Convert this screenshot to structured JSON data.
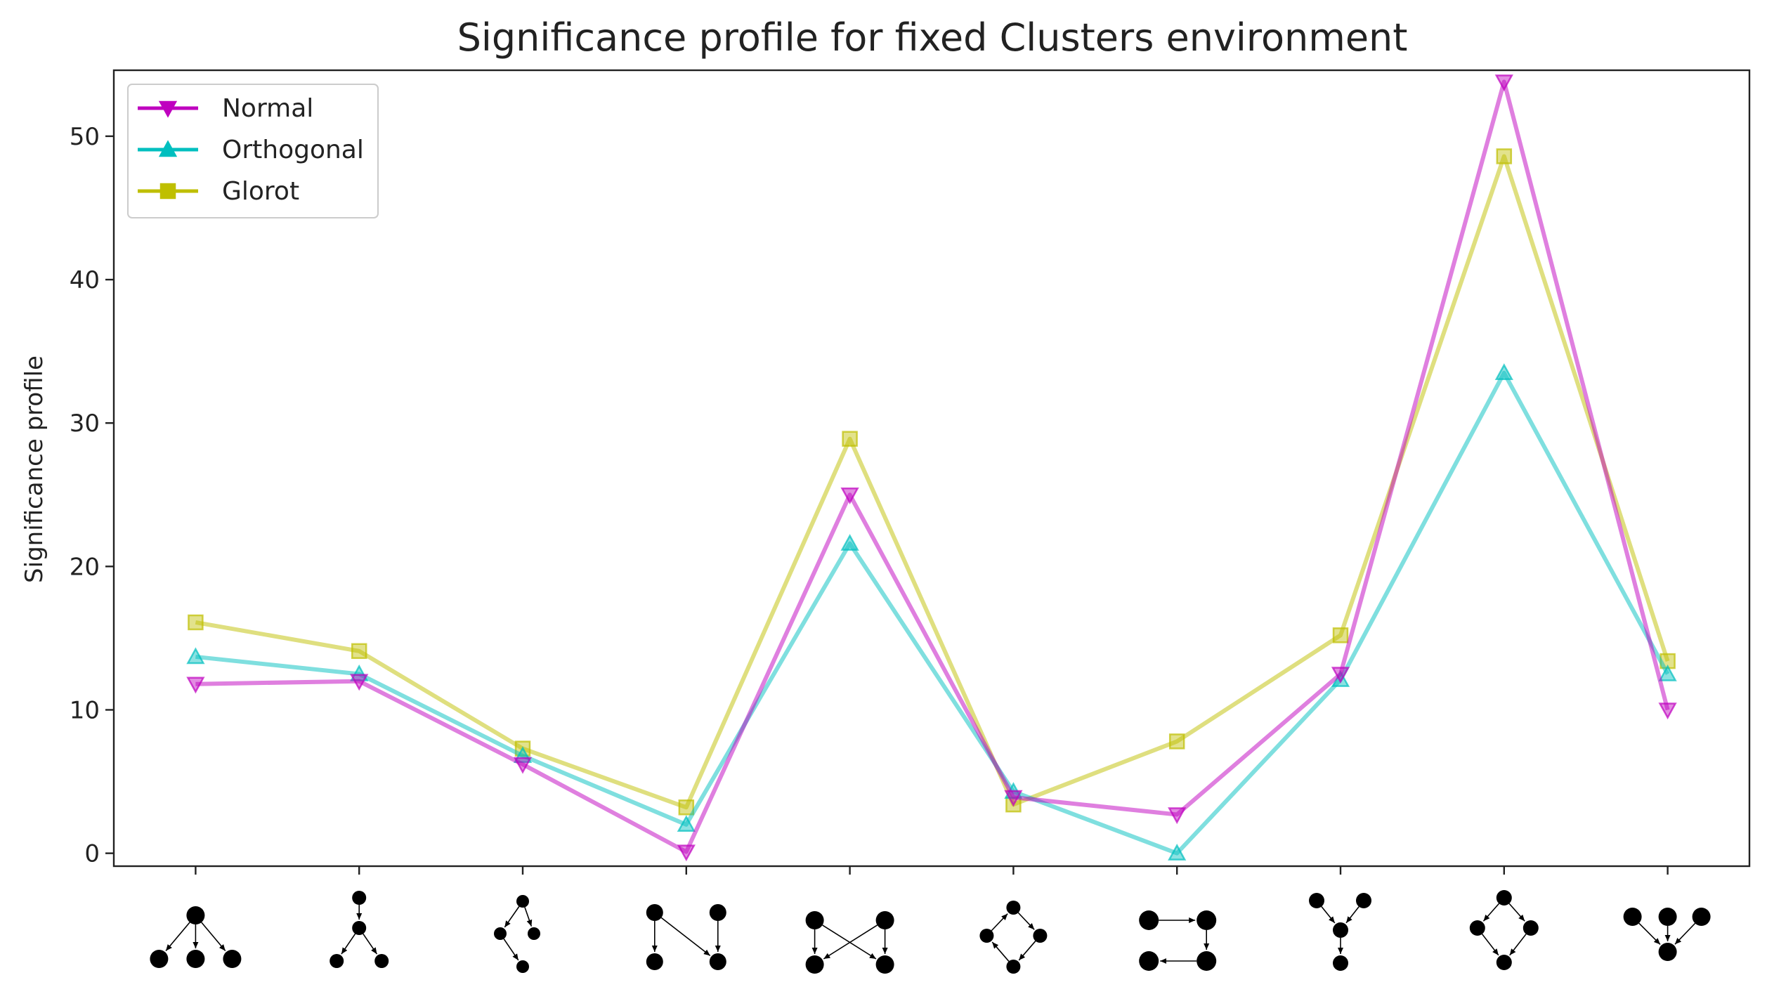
{
  "chart_data": {
    "type": "line",
    "title": "Significance profile for fixed Clusters environment",
    "xlabel": "",
    "ylabel": "Significance profile",
    "x": [
      0,
      1,
      2,
      3,
      4,
      5,
      6,
      7,
      8,
      9
    ],
    "xlim": [
      -0.5,
      9.5
    ],
    "ylim": [
      -0.9,
      54.6
    ],
    "yticks": [
      0,
      10,
      20,
      30,
      40,
      50
    ],
    "x_tick_labels": "motif diagrams (three-node subgraph icons), no text",
    "grid": false,
    "legend_position": "top-left",
    "series": [
      {
        "name": "Normal",
        "color": "#bf00bf",
        "marker": "triangle-down",
        "values": [
          11.8,
          12.0,
          6.2,
          0.1,
          25.0,
          3.9,
          2.7,
          12.5,
          53.8,
          10.0
        ]
      },
      {
        "name": "Orthogonal",
        "color": "#00bfbf",
        "marker": "triangle-up",
        "values": [
          13.7,
          12.5,
          6.8,
          2.0,
          21.6,
          4.3,
          0.0,
          12.1,
          33.5,
          12.5
        ]
      },
      {
        "name": "Glorot",
        "color": "#bfbf00",
        "marker": "square",
        "values": [
          16.1,
          14.1,
          7.3,
          3.2,
          28.9,
          3.4,
          7.8,
          15.2,
          48.6,
          13.4
        ]
      }
    ],
    "motif_icons": [
      "motif-1",
      "motif-2",
      "motif-3",
      "motif-4",
      "motif-5",
      "motif-6",
      "motif-7",
      "motif-8",
      "motif-9",
      "motif-10"
    ]
  }
}
